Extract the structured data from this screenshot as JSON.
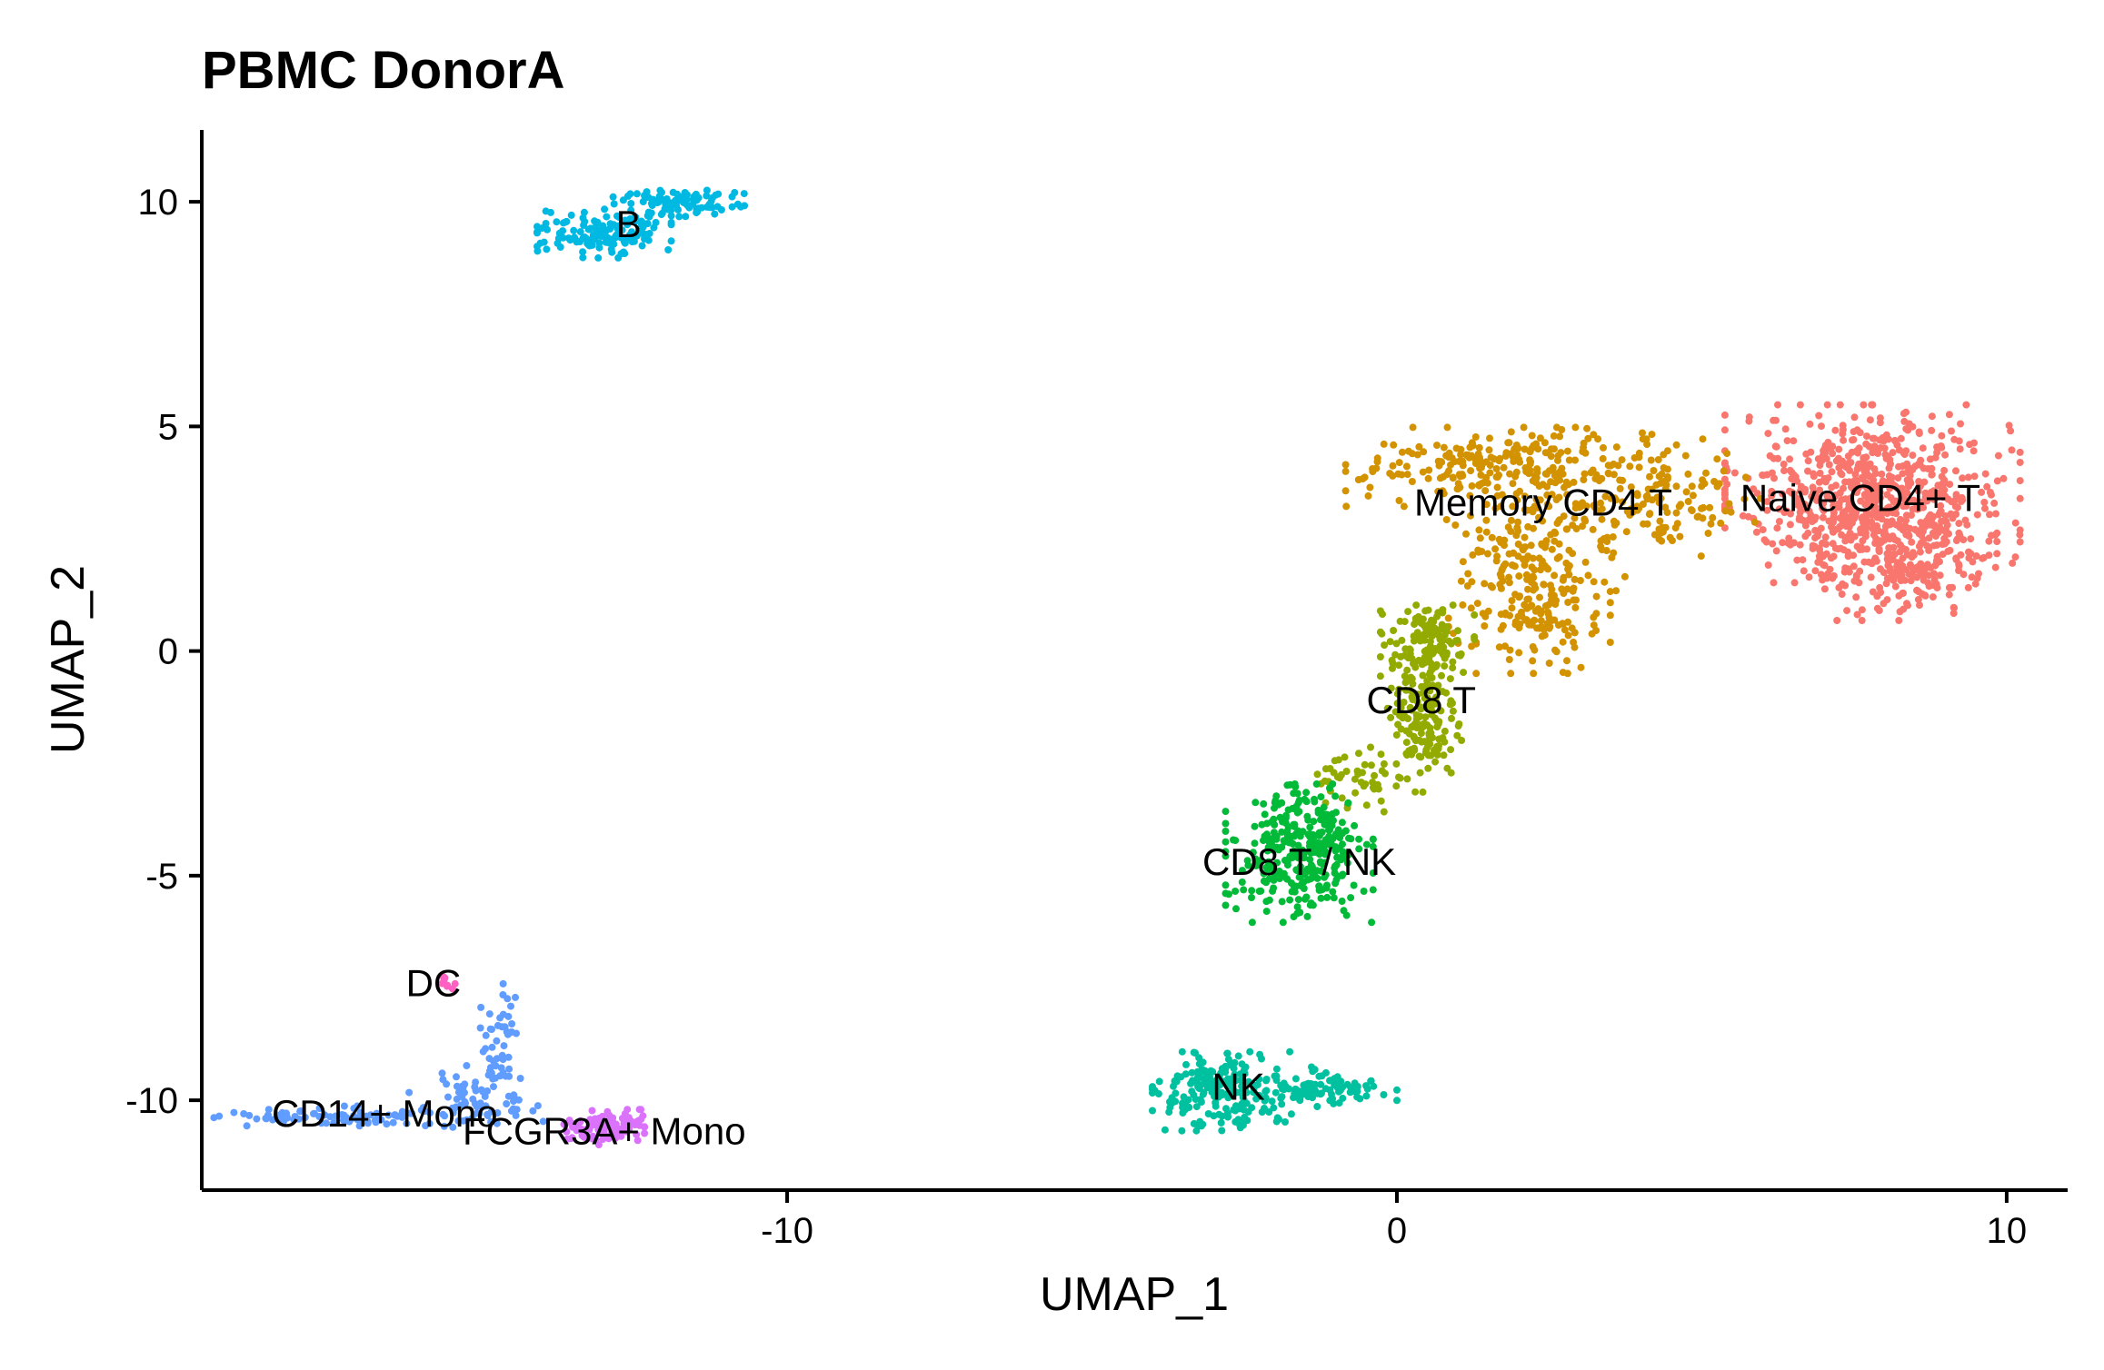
{
  "chart_data": {
    "type": "scatter",
    "title": "PBMC DonorA",
    "xlabel": "UMAP_1",
    "ylabel": "UMAP_2",
    "xlim": [
      -19.6,
      11.0
    ],
    "ylim": [
      -12.0,
      11.6
    ],
    "xticks": [
      -10,
      0,
      10
    ],
    "yticks": [
      10,
      5,
      0,
      -5,
      -10
    ],
    "xtick_labels": [
      "-10",
      "0",
      "10"
    ],
    "ytick_labels": [
      "10",
      "5",
      "0",
      "-5",
      "-10"
    ],
    "grid": false,
    "legend": "none",
    "clusters": [
      {
        "name": "Naive CD4+ T",
        "color": "#F8766D",
        "label_xy": [
          7.6,
          3.4
        ],
        "n": 900,
        "blobs": [
          {
            "c": [
              7.8,
              3.5
            ],
            "s": [
              1.1,
              0.9
            ],
            "w": 1.0
          },
          {
            "c": [
              8.3,
              2.0
            ],
            "s": [
              0.7,
              0.6
            ],
            "w": 0.3
          }
        ]
      },
      {
        "name": "Memory CD4 T",
        "color": "#D39200",
        "label_xy": [
          2.4,
          3.3
        ],
        "n": 650,
        "blobs": [
          {
            "c": [
              1.8,
              4.1
            ],
            "s": [
              1.2,
              0.4
            ],
            "w": 0.7
          },
          {
            "c": [
              4.2,
              3.4
            ],
            "s": [
              0.8,
              0.6
            ],
            "w": 0.4
          },
          {
            "c": [
              2.2,
              2.0
            ],
            "s": [
              0.7,
              0.9
            ],
            "w": 0.6
          },
          {
            "c": [
              2.4,
              0.6
            ],
            "s": [
              0.5,
              0.5
            ],
            "w": 0.25
          }
        ]
      },
      {
        "name": "CD8 T",
        "color": "#93AA00",
        "label_xy": [
          0.4,
          -1.1
        ],
        "n": 330,
        "blobs": [
          {
            "c": [
              0.5,
              0.1
            ],
            "s": [
              0.35,
              0.5
            ],
            "w": 0.6
          },
          {
            "c": [
              0.4,
              -1.6
            ],
            "s": [
              0.3,
              0.7
            ],
            "w": 0.6
          },
          {
            "c": [
              -0.6,
              -3.0
            ],
            "s": [
              0.4,
              0.4
            ],
            "w": 0.2
          }
        ]
      },
      {
        "name": "CD8 T / NK",
        "color": "#00BA38",
        "label_xy": [
          -1.6,
          -4.7
        ],
        "n": 330,
        "blobs": [
          {
            "c": [
              -1.6,
              -4.5
            ],
            "s": [
              0.55,
              0.7
            ],
            "w": 1.0
          }
        ]
      },
      {
        "name": "NK",
        "color": "#00C19F",
        "label_xy": [
          -2.6,
          -9.7
        ],
        "n": 300,
        "blobs": [
          {
            "c": [
              -2.8,
              -9.8
            ],
            "s": [
              0.55,
              0.4
            ],
            "w": 1.0
          },
          {
            "c": [
              -1.1,
              -9.7
            ],
            "s": [
              0.5,
              0.2
            ],
            "w": 0.35
          }
        ]
      },
      {
        "name": "B",
        "color": "#00B9E3",
        "label_xy": [
          -12.6,
          9.5
        ],
        "n": 240,
        "blobs": [
          {
            "c": [
              -13.0,
              9.3
            ],
            "s": [
              0.5,
              0.25
            ],
            "w": 0.7
          },
          {
            "c": [
              -11.8,
              10.0
            ],
            "s": [
              0.5,
              0.18
            ],
            "w": 0.4
          }
        ]
      },
      {
        "name": "CD14+ Mono",
        "color": "#619CFF",
        "label_xy": [
          -16.6,
          -10.3
        ],
        "n": 200,
        "blobs": [
          {
            "c": [
              -17.2,
              -10.35
            ],
            "s": [
              1.0,
              0.1
            ],
            "w": 0.6
          },
          {
            "c": [
              -15.1,
              -10.0
            ],
            "s": [
              0.5,
              0.35
            ],
            "w": 0.4
          },
          {
            "c": [
              -14.7,
              -8.7
            ],
            "s": [
              0.15,
              0.6
            ],
            "w": 0.3
          }
        ]
      },
      {
        "name": "FCGR3A+ Mono",
        "color": "#DB72FB",
        "label_xy": [
          -13.0,
          -10.7
        ],
        "n": 110,
        "blobs": [
          {
            "c": [
              -13.0,
              -10.6
            ],
            "s": [
              0.3,
              0.18
            ],
            "w": 1.0
          }
        ]
      },
      {
        "name": "DC",
        "color": "#FF61C3",
        "label_xy": [
          -15.8,
          -7.4
        ],
        "n": 8,
        "blobs": [
          {
            "c": [
              -15.6,
              -7.4
            ],
            "s": [
              0.1,
              0.1
            ],
            "w": 1.0
          }
        ]
      }
    ]
  }
}
